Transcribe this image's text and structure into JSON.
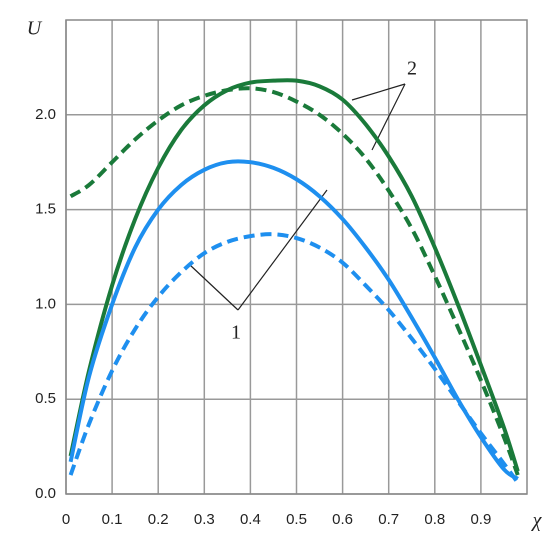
{
  "chart_data": {
    "type": "line",
    "y_label": "U",
    "x_label": "χ",
    "x": [
      0.01,
      0.05,
      0.1,
      0.15,
      0.2,
      0.25,
      0.3,
      0.35,
      0.4,
      0.45,
      0.5,
      0.55,
      0.6,
      0.65,
      0.7,
      0.75,
      0.8,
      0.85,
      0.9,
      0.95,
      0.98
    ],
    "series": [
      {
        "color": "#1a7a3a",
        "dashed": false,
        "values": [
          0.2,
          0.65,
          1.1,
          1.45,
          1.72,
          1.92,
          2.05,
          2.13,
          2.17,
          2.18,
          2.18,
          2.15,
          2.08,
          1.95,
          1.78,
          1.57,
          1.3,
          1.0,
          0.68,
          0.35,
          0.12
        ]
      },
      {
        "color": "#1a7a3a",
        "dashed": true,
        "values": [
          1.57,
          1.63,
          1.75,
          1.87,
          1.97,
          2.05,
          2.1,
          2.13,
          2.14,
          2.12,
          2.07,
          2.0,
          1.9,
          1.77,
          1.6,
          1.4,
          1.15,
          0.88,
          0.6,
          0.3,
          0.1
        ]
      },
      {
        "color": "#1e8fef",
        "dashed": false,
        "values": [
          0.17,
          0.62,
          1.0,
          1.3,
          1.5,
          1.63,
          1.71,
          1.75,
          1.75,
          1.72,
          1.66,
          1.57,
          1.45,
          1.3,
          1.13,
          0.93,
          0.72,
          0.5,
          0.3,
          0.13,
          0.08
        ]
      },
      {
        "color": "#1e8fef",
        "dashed": true,
        "values": [
          0.1,
          0.37,
          0.65,
          0.87,
          1.04,
          1.17,
          1.27,
          1.33,
          1.36,
          1.37,
          1.35,
          1.3,
          1.22,
          1.1,
          0.97,
          0.82,
          0.66,
          0.49,
          0.32,
          0.16,
          0.06
        ]
      }
    ],
    "annotations": [
      "1",
      "2"
    ],
    "xlim": [
      0,
      1
    ],
    "ylim": [
      0,
      2.5
    ],
    "xticks": [
      0,
      0.1,
      0.2,
      0.3,
      0.4,
      0.5,
      0.6,
      0.7,
      0.8,
      0.9
    ],
    "yticks": [
      {
        "value": 0,
        "label": "0.0"
      },
      {
        "value": 0.5,
        "label": "0.5"
      },
      {
        "value": 1,
        "label": "1.0"
      },
      {
        "value": 1.5,
        "label": "1.5"
      },
      {
        "value": 2,
        "label": "2.0"
      }
    ],
    "grid": true
  }
}
